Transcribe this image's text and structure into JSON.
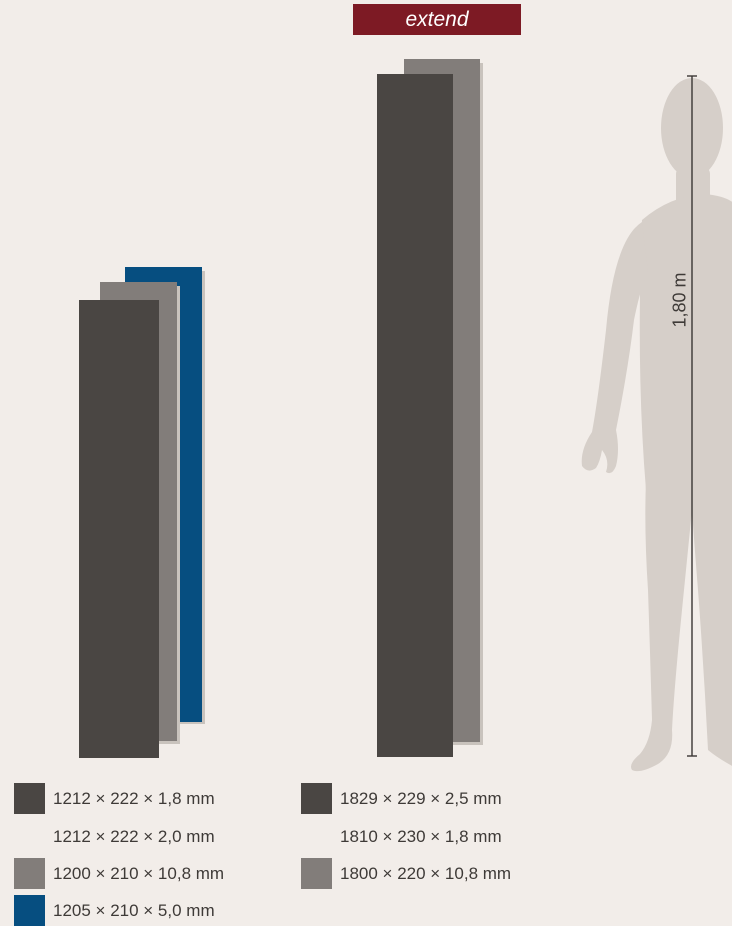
{
  "header": {
    "product_label": "extend"
  },
  "colors": {
    "background": "#f2ede9",
    "plank_dark": "#4a4643",
    "plank_gray": "#827d7a",
    "plank_blue": "#064e80",
    "badge": "#7d1a24",
    "silhouette": "#d6cfc9"
  },
  "figure": {
    "height_label": "1,80 m"
  },
  "legend": {
    "left": [
      {
        "label": "1212 × 222 × 1,8 mm",
        "swatch": "dark"
      },
      {
        "label": "1212 × 222 × 2,0 mm",
        "swatch": "none"
      },
      {
        "label": "1200 × 210 × 10,8 mm",
        "swatch": "gray"
      },
      {
        "label": "1205 × 210 × 5,0 mm",
        "swatch": "blue"
      }
    ],
    "right": [
      {
        "label": "1829 × 229 × 2,5 mm",
        "swatch": "dark"
      },
      {
        "label": "1810 × 230 × 1,8 mm",
        "swatch": "none"
      },
      {
        "label": "1800 × 220 × 10,8 mm",
        "swatch": "gray"
      }
    ]
  }
}
